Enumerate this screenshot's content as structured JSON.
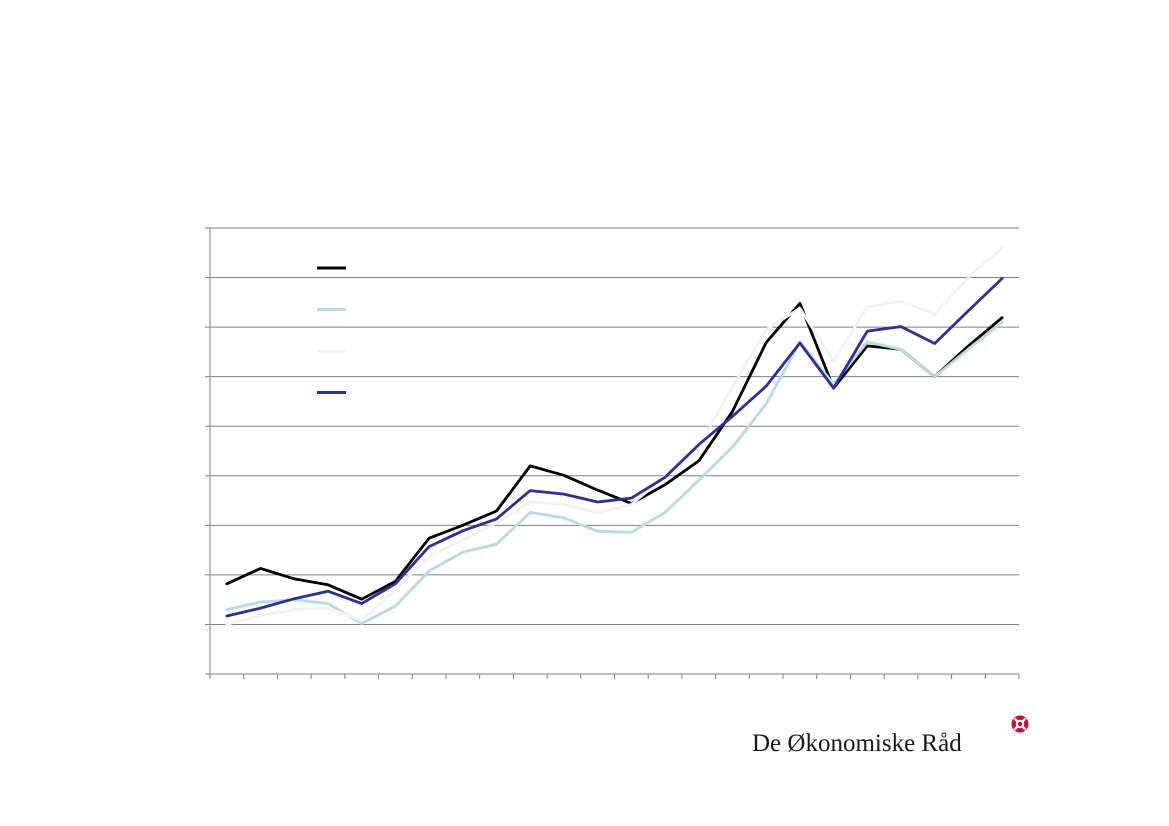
{
  "brand": {
    "name": "De Økonomiske Råd",
    "logo_icon": "red-circle-cross-icon"
  },
  "chart_data": {
    "type": "line",
    "title": "",
    "xlabel": "",
    "ylabel": "",
    "ylim": [
      0,
      9
    ],
    "y_ticks": [
      0,
      1,
      2,
      3,
      4,
      5,
      6,
      7,
      8,
      9
    ],
    "grid": true,
    "legend_position": "top-left",
    "x": [
      1,
      2,
      3,
      4,
      5,
      6,
      7,
      8,
      9,
      10,
      11,
      12,
      13,
      14,
      15,
      16,
      17,
      18,
      19,
      20,
      21,
      22,
      23,
      24
    ],
    "series": [
      {
        "color": "#000000",
        "values": [
          1.82,
          2.13,
          1.92,
          1.8,
          1.51,
          1.87,
          2.74,
          3.0,
          3.29,
          4.2,
          4.01,
          3.71,
          3.44,
          3.82,
          4.3,
          5.3,
          6.69,
          7.48,
          5.77,
          6.62,
          6.55,
          6.0,
          6.62,
          7.19
        ]
      },
      {
        "color": "#b5dde3",
        "values": [
          1.3,
          1.45,
          1.5,
          1.42,
          1.02,
          1.37,
          2.08,
          2.46,
          2.62,
          3.26,
          3.15,
          2.88,
          2.86,
          3.26,
          3.91,
          4.58,
          5.45,
          6.7,
          5.85,
          6.7,
          6.55,
          6.0,
          6.56,
          7.1
        ]
      },
      {
        "color": "#f2f2f2",
        "values": [
          1.0,
          1.18,
          1.3,
          1.33,
          1.08,
          1.7,
          2.38,
          2.7,
          3.05,
          3.47,
          3.42,
          3.25,
          3.42,
          3.99,
          4.6,
          5.8,
          6.95,
          7.38,
          6.31,
          7.41,
          7.52,
          7.26,
          8.0,
          8.6
        ]
      },
      {
        "color": "#2e3192",
        "values": [
          1.17,
          1.33,
          1.52,
          1.67,
          1.42,
          1.82,
          2.57,
          2.89,
          3.13,
          3.7,
          3.63,
          3.47,
          3.55,
          3.97,
          4.63,
          5.2,
          5.81,
          6.68,
          5.77,
          6.92,
          7.01,
          6.67,
          7.33,
          7.98
        ]
      }
    ]
  }
}
